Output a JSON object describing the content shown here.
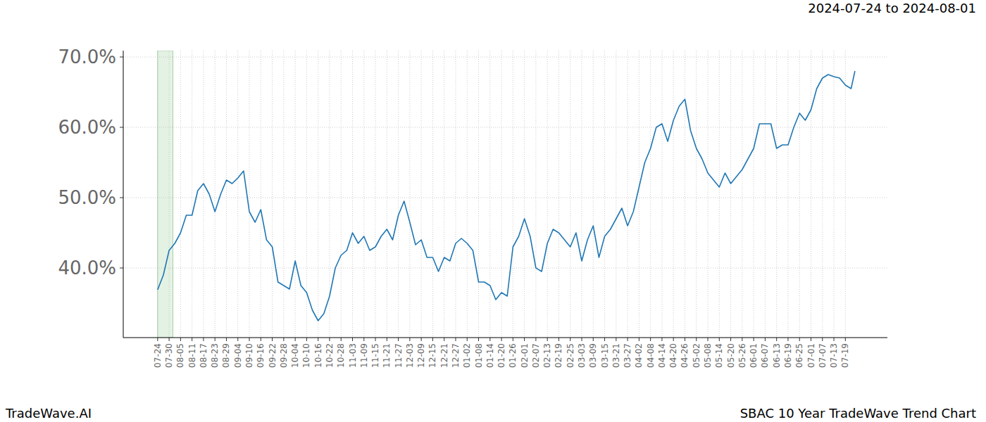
{
  "chart_data": {
    "type": "line",
    "title": "SBAC 10 Year TradeWave Trend Chart",
    "subtitle": "2024-07-24 to 2024-08-01",
    "source": "TradeWave.AI",
    "highlight_range": [
      0,
      8
    ],
    "x": [
      0,
      3,
      6,
      9,
      12,
      15,
      18,
      21,
      24,
      27,
      30,
      33,
      36,
      39,
      42,
      45,
      48,
      51,
      54,
      57,
      60,
      63,
      66,
      69,
      72,
      75,
      78,
      81,
      84,
      87,
      90,
      93,
      96,
      99,
      102,
      105,
      108,
      111,
      114,
      117,
      120,
      123,
      126,
      129,
      132,
      135,
      138,
      141,
      144,
      147,
      150,
      153,
      156,
      159,
      162,
      165,
      168,
      171,
      174,
      177,
      180,
      183,
      186,
      189,
      192,
      195,
      198,
      201,
      204,
      207,
      210,
      213,
      216,
      219,
      222,
      225,
      228,
      231,
      234,
      237,
      240,
      243,
      246,
      249,
      252,
      255,
      258,
      261,
      264,
      267,
      270,
      273,
      276,
      279,
      282,
      285,
      288,
      291,
      294,
      297,
      300,
      303,
      306,
      309,
      312,
      315,
      318,
      321,
      324,
      327,
      330,
      333,
      336,
      339,
      342,
      345,
      348,
      351,
      354,
      357,
      360,
      363,
      365
    ],
    "series": [
      {
        "name": "SBAC",
        "color": "#1f77b4",
        "values": [
          36.9,
          39.0,
          42.5,
          43.5,
          45.0,
          47.5,
          47.5,
          51.0,
          52.0,
          50.5,
          48.0,
          50.5,
          52.5,
          52.0,
          52.8,
          53.8,
          48.0,
          46.5,
          48.3,
          44.0,
          43.0,
          38.0,
          37.5,
          37.0,
          41.0,
          37.5,
          36.5,
          34.0,
          32.5,
          33.5,
          36.0,
          40.0,
          41.8,
          42.5,
          45.0,
          43.5,
          44.5,
          42.5,
          43.0,
          44.5,
          45.5,
          44.0,
          47.5,
          49.5,
          46.5,
          43.3,
          44.0,
          41.5,
          41.5,
          39.5,
          41.5,
          41.0,
          43.5,
          44.2,
          43.5,
          42.5,
          38.0,
          38.0,
          37.5,
          35.5,
          36.5,
          36.0,
          43.0,
          44.5,
          47.0,
          44.5,
          40.0,
          39.5,
          43.5,
          45.5,
          45.0,
          44.0,
          43.0,
          45.0,
          41.0,
          44.0,
          46.0,
          41.5,
          44.5,
          45.5,
          47.0,
          48.5,
          46.0,
          48.0,
          51.5,
          55.0,
          57.0,
          60.0,
          60.5,
          58.0,
          61.0,
          63.0,
          64.0,
          59.5,
          57.0,
          55.5,
          53.5,
          52.5,
          51.5,
          53.5,
          52.0,
          53.0,
          54.0,
          55.5,
          57.0,
          60.5,
          60.5,
          60.5,
          57.0,
          57.5,
          57.5,
          60.0,
          62.0,
          61.0,
          62.5,
          65.5,
          67.0,
          67.5,
          67.2,
          67.0,
          66.0,
          65.5,
          68.0
        ]
      }
    ],
    "xlim": [
      -18,
      382
    ],
    "ylim": [
      30.1,
      70.9
    ],
    "xticks": [
      {
        "value": 0,
        "label": "07-24"
      },
      {
        "value": 6,
        "label": "07-30"
      },
      {
        "value": 12,
        "label": "08-05"
      },
      {
        "value": 18,
        "label": "08-11"
      },
      {
        "value": 24,
        "label": "08-17"
      },
      {
        "value": 30,
        "label": "08-23"
      },
      {
        "value": 36,
        "label": "08-29"
      },
      {
        "value": 42,
        "label": "09-04"
      },
      {
        "value": 48,
        "label": "09-10"
      },
      {
        "value": 54,
        "label": "09-16"
      },
      {
        "value": 60,
        "label": "09-22"
      },
      {
        "value": 66,
        "label": "09-28"
      },
      {
        "value": 72,
        "label": "10-04"
      },
      {
        "value": 78,
        "label": "10-10"
      },
      {
        "value": 84,
        "label": "10-16"
      },
      {
        "value": 90,
        "label": "10-22"
      },
      {
        "value": 96,
        "label": "10-28"
      },
      {
        "value": 102,
        "label": "11-03"
      },
      {
        "value": 108,
        "label": "11-09"
      },
      {
        "value": 114,
        "label": "11-15"
      },
      {
        "value": 120,
        "label": "11-21"
      },
      {
        "value": 126,
        "label": "11-27"
      },
      {
        "value": 132,
        "label": "12-03"
      },
      {
        "value": 138,
        "label": "12-09"
      },
      {
        "value": 144,
        "label": "12-15"
      },
      {
        "value": 150,
        "label": "12-21"
      },
      {
        "value": 156,
        "label": "12-27"
      },
      {
        "value": 162,
        "label": "01-02"
      },
      {
        "value": 168,
        "label": "01-08"
      },
      {
        "value": 174,
        "label": "01-14"
      },
      {
        "value": 180,
        "label": "01-20"
      },
      {
        "value": 186,
        "label": "01-26"
      },
      {
        "value": 192,
        "label": "02-01"
      },
      {
        "value": 198,
        "label": "02-07"
      },
      {
        "value": 204,
        "label": "02-13"
      },
      {
        "value": 210,
        "label": "02-19"
      },
      {
        "value": 216,
        "label": "02-25"
      },
      {
        "value": 222,
        "label": "03-03"
      },
      {
        "value": 228,
        "label": "03-09"
      },
      {
        "value": 234,
        "label": "03-15"
      },
      {
        "value": 240,
        "label": "03-21"
      },
      {
        "value": 246,
        "label": "03-27"
      },
      {
        "value": 252,
        "label": "04-02"
      },
      {
        "value": 258,
        "label": "04-08"
      },
      {
        "value": 264,
        "label": "04-14"
      },
      {
        "value": 270,
        "label": "04-20"
      },
      {
        "value": 276,
        "label": "04-26"
      },
      {
        "value": 282,
        "label": "05-02"
      },
      {
        "value": 288,
        "label": "05-08"
      },
      {
        "value": 294,
        "label": "05-14"
      },
      {
        "value": 300,
        "label": "05-20"
      },
      {
        "value": 306,
        "label": "05-26"
      },
      {
        "value": 312,
        "label": "06-01"
      },
      {
        "value": 318,
        "label": "06-07"
      },
      {
        "value": 324,
        "label": "06-13"
      },
      {
        "value": 330,
        "label": "06-19"
      },
      {
        "value": 336,
        "label": "06-25"
      },
      {
        "value": 342,
        "label": "07-01"
      },
      {
        "value": 348,
        "label": "07-07"
      },
      {
        "value": 354,
        "label": "07-13"
      },
      {
        "value": 360,
        "label": "07-19"
      }
    ],
    "yticks": [
      {
        "value": 40,
        "label": "40.0%"
      },
      {
        "value": 50,
        "label": "50.0%"
      },
      {
        "value": 60,
        "label": "60.0%"
      },
      {
        "value": 70,
        "label": "70.0%"
      }
    ],
    "grid": true
  }
}
